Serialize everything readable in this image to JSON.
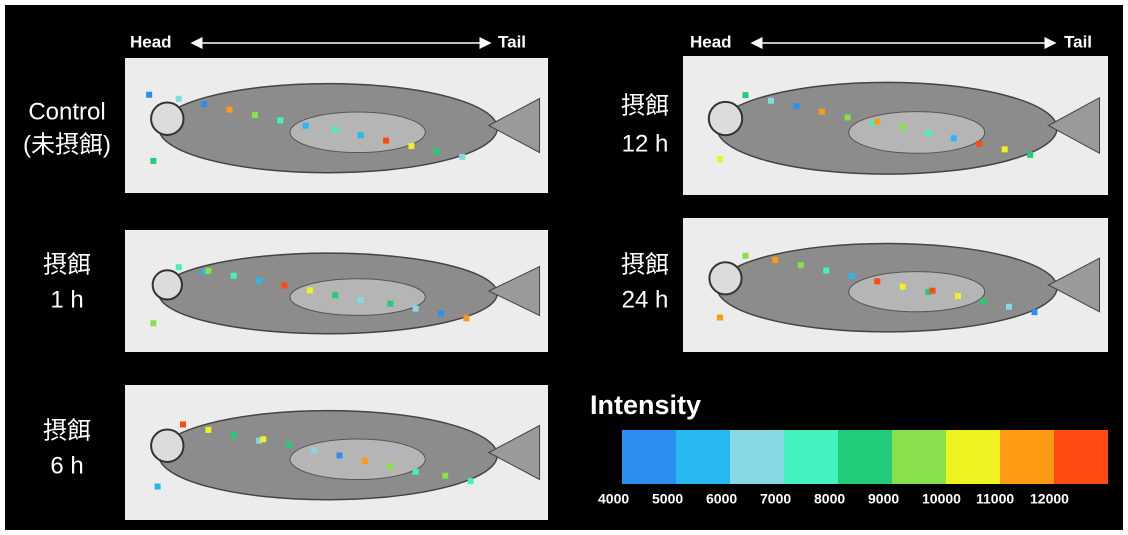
{
  "header": [
    {
      "head": "Head",
      "tail": "Tail"
    },
    {
      "head": "Head",
      "tail": "Tail"
    }
  ],
  "panels": [
    {
      "label": [
        "Control",
        "(未摂餌)"
      ]
    },
    {
      "label": [
        "摂餌",
        "1 h"
      ]
    },
    {
      "label": [
        "摂餌",
        "6 h"
      ]
    },
    {
      "label": [
        "摂餌",
        "12 h"
      ]
    },
    {
      "label": [
        "摂餌",
        "24 h"
      ]
    }
  ],
  "legend": {
    "title": "Intensity",
    "ticks": [
      4000,
      5000,
      6000,
      7000,
      8000,
      9000,
      10000,
      11000,
      12000
    ],
    "colors": [
      "#2a8ff0",
      "#27b8f2",
      "#86d8e2",
      "#44f2c0",
      "#22cc78",
      "#88e04a",
      "#eef21e",
      "#ff9a14",
      "#ff4a10"
    ]
  }
}
